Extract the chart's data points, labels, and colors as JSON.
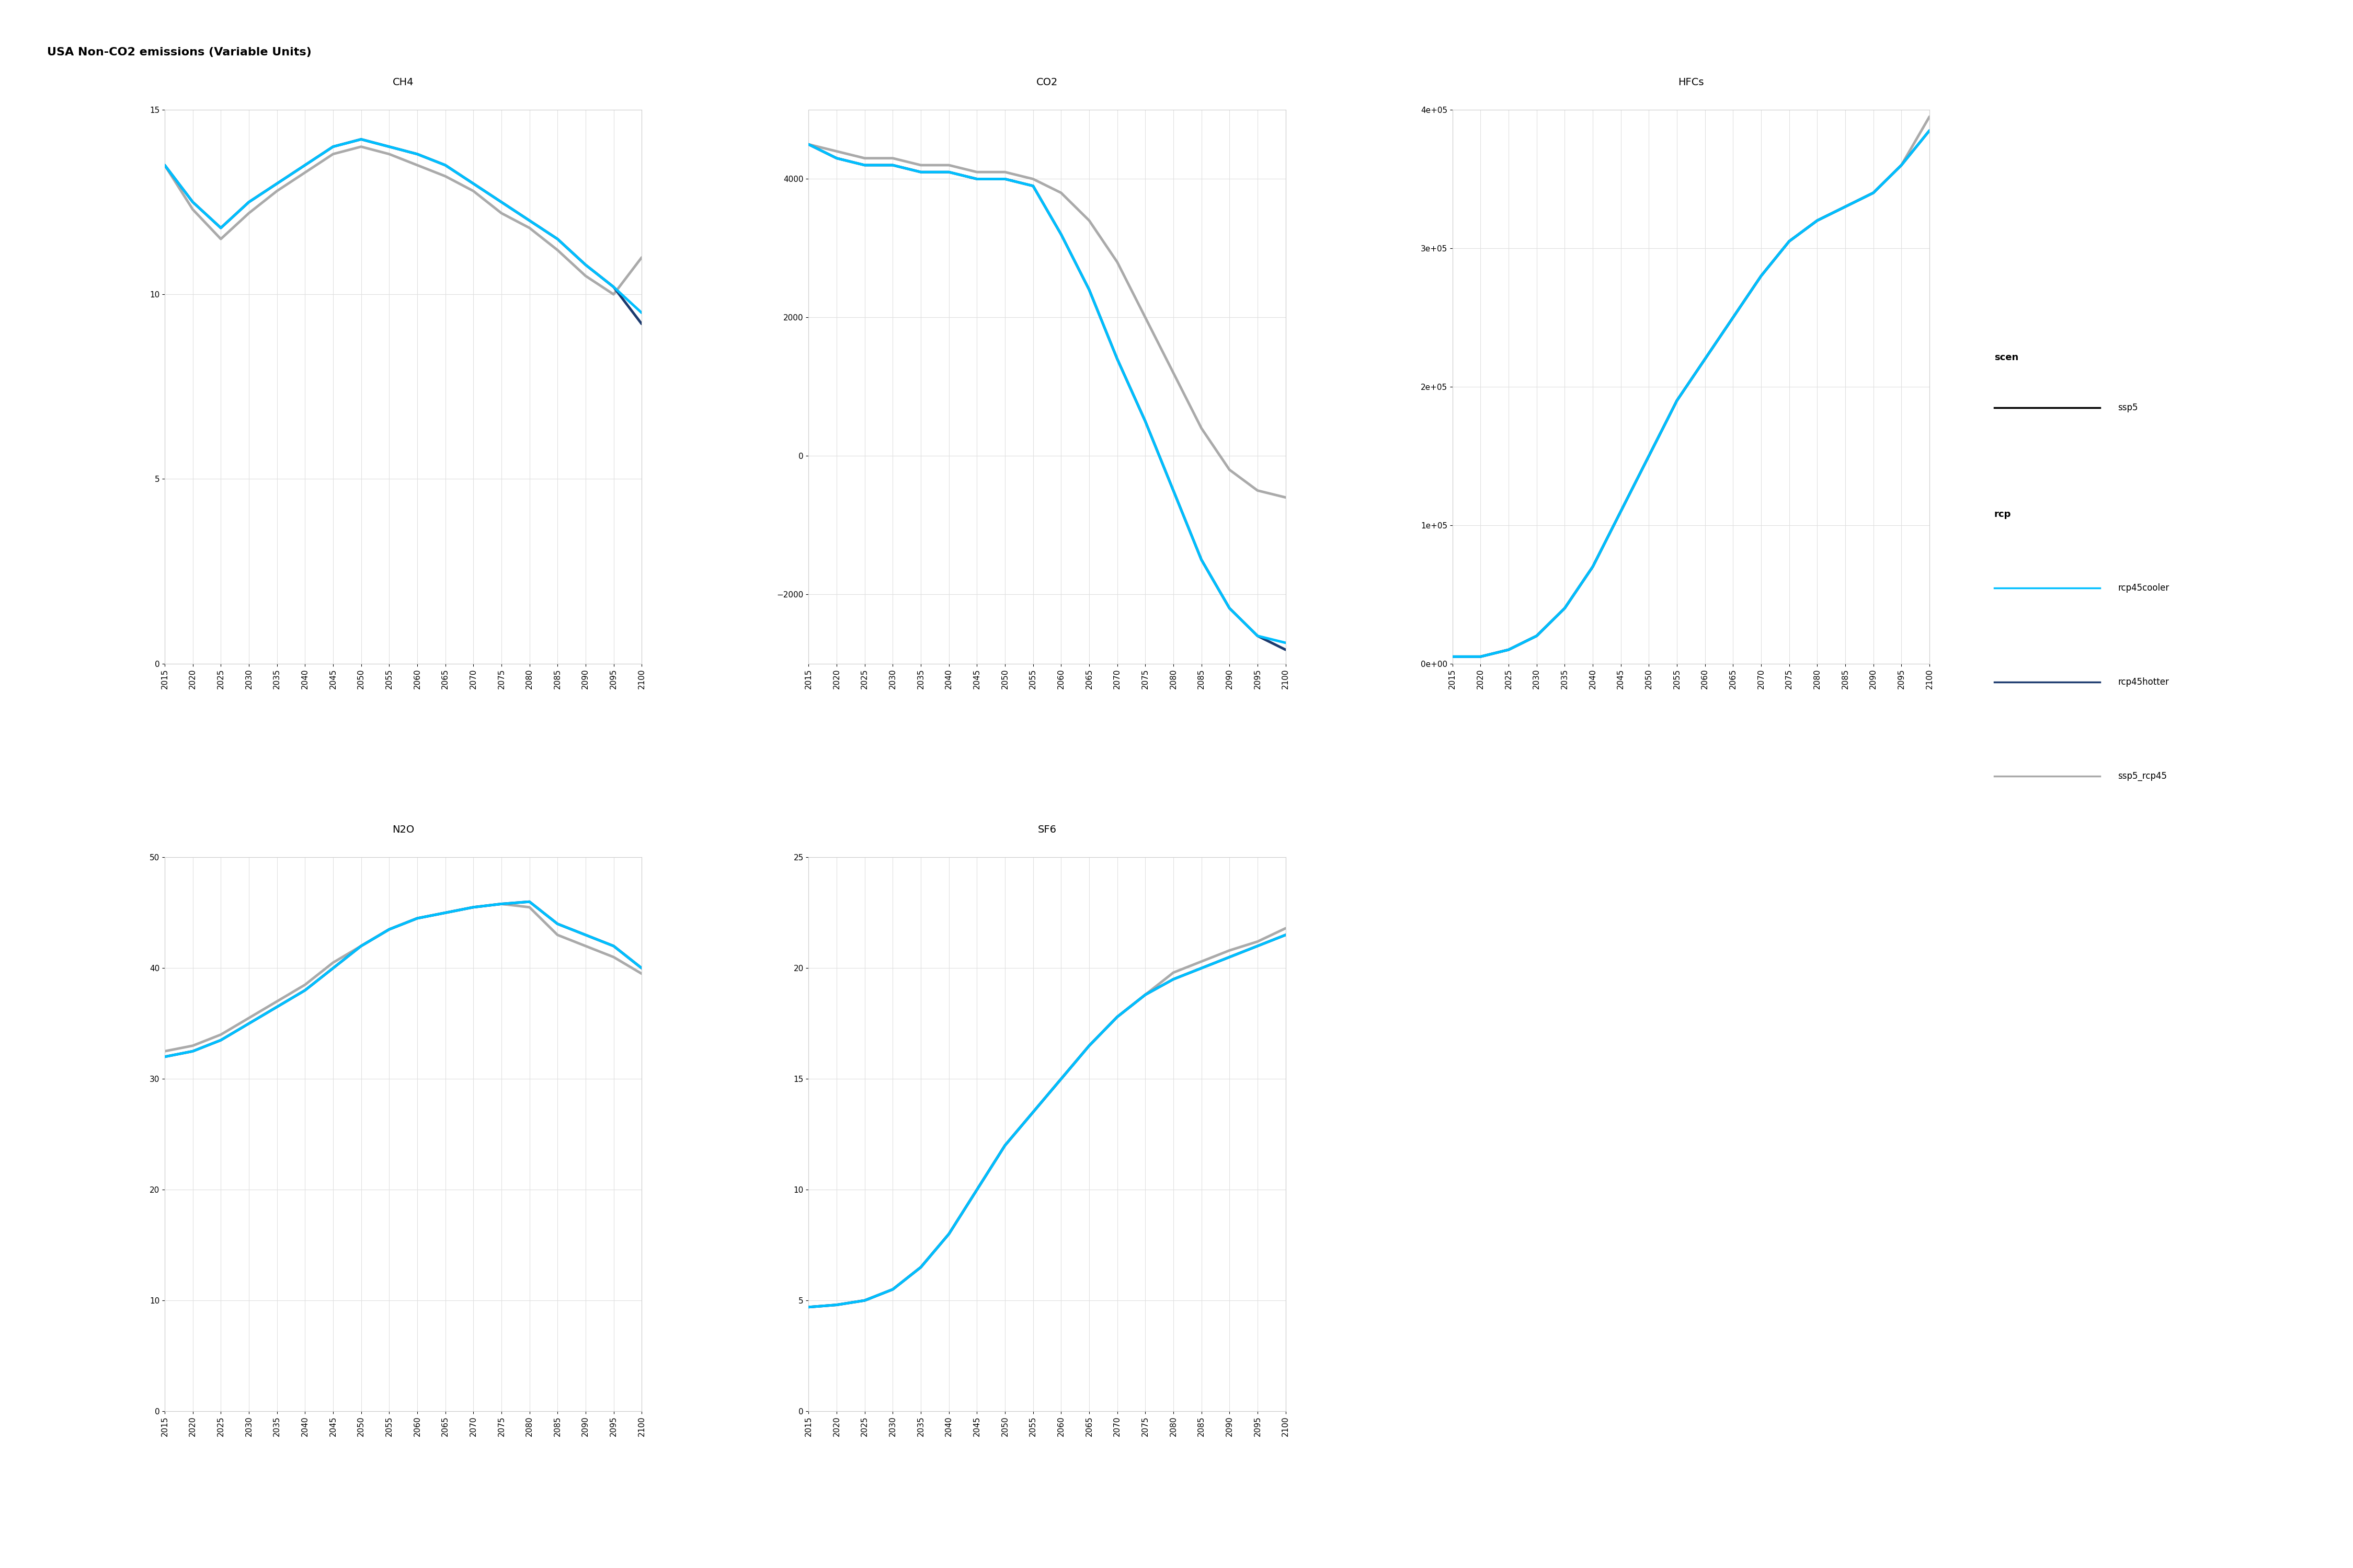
{
  "title": "USA Non-CO2 emissions (Variable Units)",
  "years": [
    2015,
    2020,
    2025,
    2030,
    2035,
    2040,
    2045,
    2050,
    2055,
    2060,
    2065,
    2070,
    2075,
    2080,
    2085,
    2090,
    2095,
    2100
  ],
  "panels": {
    "CH4": {
      "title": "CH4",
      "ylim": [
        0,
        15
      ],
      "yticks": [
        0,
        5,
        10,
        15
      ],
      "rcp45cooler": [
        13.5,
        12.5,
        11.8,
        12.5,
        13.0,
        13.5,
        14.0,
        14.2,
        14.0,
        13.8,
        13.5,
        13.0,
        12.5,
        12.0,
        11.5,
        10.8,
        10.2,
        9.5
      ],
      "rcp45hotter": [
        13.5,
        12.5,
        11.8,
        12.5,
        13.0,
        13.5,
        14.0,
        14.2,
        14.0,
        13.8,
        13.5,
        13.0,
        12.5,
        12.0,
        11.5,
        10.8,
        10.2,
        9.2
      ],
      "ssp5_rcp45": [
        13.5,
        12.3,
        11.5,
        12.2,
        12.8,
        13.3,
        13.8,
        14.0,
        13.8,
        13.5,
        13.2,
        12.8,
        12.2,
        11.8,
        11.2,
        10.5,
        10.0,
        11.0
      ]
    },
    "CO2": {
      "title": "CO2",
      "ylim": [
        -3000,
        5000
      ],
      "yticks": [
        -2000,
        0,
        2000,
        4000
      ],
      "rcp45cooler": [
        4500,
        4300,
        4200,
        4200,
        4100,
        4100,
        4000,
        4000,
        3900,
        3200,
        2400,
        1400,
        500,
        -500,
        -1500,
        -2200,
        -2600,
        -2700
      ],
      "rcp45hotter": [
        4500,
        4300,
        4200,
        4200,
        4100,
        4100,
        4000,
        4000,
        3900,
        3200,
        2400,
        1400,
        500,
        -500,
        -1500,
        -2200,
        -2600,
        -2800
      ],
      "ssp5_rcp45": [
        4500,
        4400,
        4300,
        4300,
        4200,
        4200,
        4100,
        4100,
        4000,
        3800,
        3400,
        2800,
        2000,
        1200,
        400,
        -200,
        -500,
        -600
      ]
    },
    "HFCs": {
      "title": "HFCs",
      "ylim": [
        0,
        400000
      ],
      "yticks": [
        0,
        100000,
        200000,
        300000,
        400000
      ],
      "rcp45cooler": [
        5000,
        5000,
        10000,
        20000,
        40000,
        70000,
        110000,
        150000,
        190000,
        220000,
        250000,
        280000,
        305000,
        320000,
        330000,
        340000,
        360000,
        385000
      ],
      "rcp45hotter": [
        5000,
        5000,
        10000,
        20000,
        40000,
        70000,
        110000,
        150000,
        190000,
        220000,
        250000,
        280000,
        305000,
        320000,
        330000,
        340000,
        360000,
        385000
      ],
      "ssp5_rcp45": [
        5000,
        5000,
        10000,
        20000,
        40000,
        70000,
        110000,
        150000,
        190000,
        220000,
        250000,
        280000,
        305000,
        320000,
        330000,
        340000,
        360000,
        395000
      ]
    },
    "N2O": {
      "title": "N2O",
      "ylim": [
        0,
        50
      ],
      "yticks": [
        0,
        10,
        20,
        30,
        40,
        50
      ],
      "rcp45cooler": [
        32,
        32.5,
        33.5,
        35,
        36.5,
        38,
        40,
        42,
        43.5,
        44.5,
        45,
        45.5,
        45.8,
        46,
        44,
        43,
        42,
        40
      ],
      "rcp45hotter": [
        32,
        32.5,
        33.5,
        35,
        36.5,
        38,
        40,
        42,
        43.5,
        44.5,
        45,
        45.5,
        45.8,
        46,
        44,
        43,
        42,
        40
      ],
      "ssp5_rcp45": [
        32.5,
        33,
        34,
        35.5,
        37,
        38.5,
        40.5,
        42,
        43.5,
        44.5,
        45,
        45.5,
        45.8,
        45.5,
        43,
        42,
        41,
        39.5
      ]
    },
    "SF6": {
      "title": "SF6",
      "ylim": [
        0,
        25
      ],
      "yticks": [
        0,
        5,
        10,
        15,
        20,
        25
      ],
      "rcp45cooler": [
        4.7,
        4.8,
        5.0,
        5.5,
        6.5,
        8.0,
        10.0,
        12.0,
        13.5,
        15.0,
        16.5,
        17.8,
        18.8,
        19.5,
        20.0,
        20.5,
        21.0,
        21.5
      ],
      "rcp45hotter": [
        4.7,
        4.8,
        5.0,
        5.5,
        6.5,
        8.0,
        10.0,
        12.0,
        13.5,
        15.0,
        16.5,
        17.8,
        18.8,
        19.5,
        20.0,
        20.5,
        21.0,
        21.5
      ],
      "ssp5_rcp45": [
        4.7,
        4.8,
        5.0,
        5.5,
        6.5,
        8.0,
        10.0,
        12.0,
        13.5,
        15.0,
        16.5,
        17.8,
        18.8,
        19.8,
        20.3,
        20.8,
        21.2,
        21.8
      ]
    }
  },
  "colors": {
    "rcp45cooler": "#00BFFF",
    "rcp45hotter": "#1C3A6E",
    "ssp5_rcp45": "#AAAAAA"
  },
  "line_width": 3.5,
  "background_color": "#FFFFFF",
  "panel_bg": "#FFFFFF",
  "grid_color": "#E0E0E0",
  "strip_bg": "#D3D3D3",
  "strip_text_size": 14,
  "axis_text_size": 11,
  "title_size": 16,
  "legend_title_size": 13,
  "legend_text_size": 12
}
